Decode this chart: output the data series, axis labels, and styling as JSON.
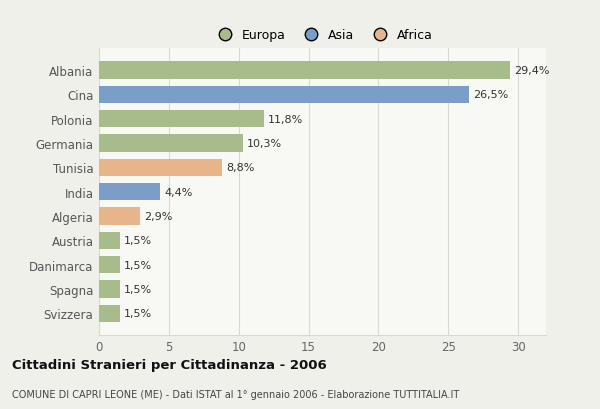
{
  "categories": [
    "Svizzera",
    "Spagna",
    "Danimarca",
    "Austria",
    "Algeria",
    "India",
    "Tunisia",
    "Germania",
    "Polonia",
    "Cina",
    "Albania"
  ],
  "values": [
    1.5,
    1.5,
    1.5,
    1.5,
    2.9,
    4.4,
    8.8,
    10.3,
    11.8,
    26.5,
    29.4
  ],
  "colors": [
    "#a8bb8a",
    "#a8bb8a",
    "#a8bb8a",
    "#a8bb8a",
    "#e8b48a",
    "#7b9ec9",
    "#e8b48a",
    "#a8bb8a",
    "#a8bb8a",
    "#7b9ec9",
    "#a8bb8a"
  ],
  "labels": [
    "1,5%",
    "1,5%",
    "1,5%",
    "1,5%",
    "2,9%",
    "4,4%",
    "8,8%",
    "10,3%",
    "11,8%",
    "26,5%",
    "29,4%"
  ],
  "title_main": "Cittadini Stranieri per Cittadinanza - 2006",
  "title_sub": "COMUNE DI CAPRI LEONE (ME) - Dati ISTAT al 1° gennaio 2006 - Elaborazione TUTTITALIA.IT",
  "legend": [
    {
      "label": "Europa",
      "color": "#a8bb8a"
    },
    {
      "label": "Asia",
      "color": "#7b9ec9"
    },
    {
      "label": "Africa",
      "color": "#e8b48a"
    }
  ],
  "xlim": [
    0,
    32
  ],
  "xticks": [
    0,
    5,
    10,
    15,
    20,
    25,
    30
  ],
  "background_color": "#f0f0eb",
  "plot_bg_color": "#f8f8f4",
  "grid_color": "#d8d8d8"
}
